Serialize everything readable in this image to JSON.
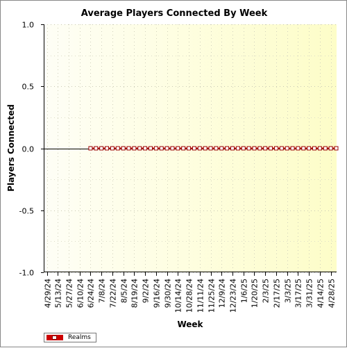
{
  "chart_data": {
    "type": "line",
    "title": "Average Players Connected By Week",
    "xlabel": "Week",
    "ylabel": "Players Connected",
    "ylim": [
      -1.0,
      1.0
    ],
    "y_ticks": [
      "1.0",
      "0.5",
      "0.0",
      "-0.5",
      "-1.0"
    ],
    "x_tick_labels": [
      "4/29/24",
      "5/13/24",
      "5/27/24",
      "6/10/24",
      "6/24/24",
      "7/8/24",
      "7/22/24",
      "8/5/24",
      "8/19/24",
      "9/2/24",
      "9/16/24",
      "9/30/24",
      "10/14/24",
      "10/28/24",
      "11/11/24",
      "11/25/24",
      "12/9/24",
      "12/23/24",
      "1/6/25",
      "1/20/25",
      "2/3/25",
      "2/17/25",
      "3/3/25",
      "3/17/25",
      "3/31/25",
      "4/14/25",
      "4/28/25"
    ],
    "x": [
      "4/29/24",
      "5/6/24",
      "5/13/24",
      "5/20/24",
      "5/27/24",
      "6/3/24",
      "6/10/24",
      "6/17/24",
      "6/24/24",
      "7/1/24",
      "7/8/24",
      "7/15/24",
      "7/22/24",
      "7/29/24",
      "8/5/24",
      "8/12/24",
      "8/19/24",
      "8/26/24",
      "9/2/24",
      "9/9/24",
      "9/16/24",
      "9/23/24",
      "9/30/24",
      "10/7/24",
      "10/14/24",
      "10/21/24",
      "10/28/24",
      "11/4/24",
      "11/11/24",
      "11/18/24",
      "11/25/24",
      "12/2/24",
      "12/9/24",
      "12/16/24",
      "12/23/24",
      "12/30/24",
      "1/6/25",
      "1/13/25",
      "1/20/25",
      "1/27/25",
      "2/3/25",
      "2/10/25",
      "2/17/25",
      "2/24/25",
      "3/3/25",
      "3/10/25",
      "3/17/25",
      "3/24/25",
      "3/31/25",
      "4/7/25",
      "4/14/25",
      "4/21/25",
      "4/28/25",
      "5/5/25"
    ],
    "series": [
      {
        "name": "Realms",
        "color": "#cc0000",
        "x": [
          "6/24/24",
          "7/1/24",
          "7/8/24",
          "7/15/24",
          "7/22/24",
          "7/29/24",
          "8/5/24",
          "8/12/24",
          "8/19/24",
          "8/26/24",
          "9/2/24",
          "9/9/24",
          "9/16/24",
          "9/23/24",
          "9/30/24",
          "10/7/24",
          "10/14/24",
          "10/21/24",
          "10/28/24",
          "11/4/24",
          "11/11/24",
          "11/18/24",
          "11/25/24",
          "12/2/24",
          "12/9/24",
          "12/16/24",
          "12/23/24",
          "12/30/24",
          "1/6/25",
          "1/13/25",
          "1/20/25",
          "1/27/25",
          "2/3/25",
          "2/10/25",
          "2/17/25",
          "2/24/25",
          "3/3/25",
          "3/10/25",
          "3/17/25",
          "3/24/25",
          "3/31/25",
          "4/7/25",
          "4/14/25",
          "4/21/25",
          "4/28/25",
          "5/5/25"
        ],
        "values": [
          0,
          0,
          0,
          0,
          0,
          0,
          0,
          0,
          0,
          0,
          0,
          0,
          0,
          0,
          0,
          0,
          0,
          0,
          0,
          0,
          0,
          0,
          0,
          0,
          0,
          0,
          0,
          0,
          0,
          0,
          0,
          0,
          0,
          0,
          0,
          0,
          0,
          0,
          0,
          0,
          0,
          0,
          0,
          0,
          0,
          0
        ]
      }
    ],
    "grid": true,
    "legend_position": "bottom-left",
    "plot_background": [
      "#fefef6",
      "#fdfdc8"
    ]
  }
}
